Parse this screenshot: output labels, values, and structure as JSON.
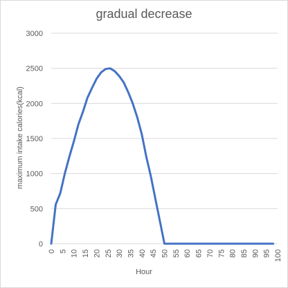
{
  "chart_data": {
    "type": "line",
    "title": "gradual decrease",
    "xlabel": "Hour",
    "ylabel": "maximum intake calories(kcal)",
    "xlim": [
      0,
      100
    ],
    "ylim": [
      0,
      3000
    ],
    "x_ticks": [
      "0",
      "5",
      "10",
      "15",
      "20",
      "25",
      "30",
      "35",
      "40",
      "45",
      "50",
      "55",
      "60",
      "65",
      "70",
      "75",
      "80",
      "85",
      "90",
      "95",
      "100"
    ],
    "y_ticks": [
      "0",
      "500",
      "1000",
      "1500",
      "2000",
      "2500",
      "3000"
    ],
    "grid": "horizontal",
    "legend": "none",
    "series": [
      {
        "color": "#4472c4",
        "points": [
          [
            0,
            0
          ],
          [
            2,
            560
          ],
          [
            4,
            720
          ],
          [
            6,
            1000
          ],
          [
            8,
            1240
          ],
          [
            10,
            1460
          ],
          [
            12,
            1700
          ],
          [
            14,
            1880
          ],
          [
            16,
            2080
          ],
          [
            18,
            2220
          ],
          [
            20,
            2350
          ],
          [
            22,
            2440
          ],
          [
            24,
            2490
          ],
          [
            26,
            2500
          ],
          [
            28,
            2460
          ],
          [
            30,
            2390
          ],
          [
            32,
            2300
          ],
          [
            34,
            2160
          ],
          [
            36,
            2000
          ],
          [
            38,
            1800
          ],
          [
            40,
            1560
          ],
          [
            42,
            1240
          ],
          [
            44,
            960
          ],
          [
            46,
            640
          ],
          [
            48,
            320
          ],
          [
            50,
            0
          ],
          [
            52,
            0
          ],
          [
            60,
            0
          ],
          [
            70,
            0
          ],
          [
            80,
            0
          ],
          [
            90,
            0
          ],
          [
            98,
            0
          ]
        ]
      }
    ]
  }
}
